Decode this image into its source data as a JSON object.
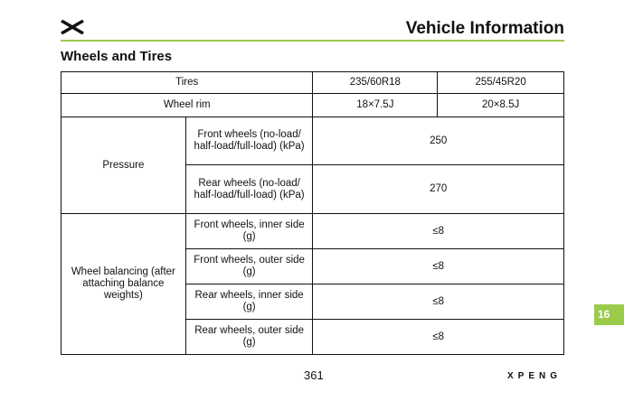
{
  "header": {
    "title": "Vehicle Information",
    "logo": "xpeng-x-logo"
  },
  "section": {
    "title": "Wheels and Tires"
  },
  "table": {
    "tires_label": "Tires",
    "tire_a": "235/60R18",
    "tire_b": "255/45R20",
    "rim_label": "Wheel rim",
    "rim_a": "18×7.5J",
    "rim_b": "20×8.5J",
    "pressure_label": "Pressure",
    "front_pressure_label": "Front wheels (no-load/ half-load/full-load) (kPa)",
    "front_pressure": "250",
    "rear_pressure_label": "Rear wheels (no-load/ half-load/full-load) (kPa)",
    "rear_pressure": "270",
    "balancing_label": "Wheel balancing (after attaching balance weights)",
    "balancing_rows": [
      {
        "label": "Front wheels, inner side (g)",
        "value": "≤8"
      },
      {
        "label": "Front wheels, outer side (g)",
        "value": "≤8"
      },
      {
        "label": "Rear wheels, inner side (g)",
        "value": "≤8"
      },
      {
        "label": "Rear wheels, outer side (g)",
        "value": "≤8"
      }
    ]
  },
  "chapter_tab": "16",
  "footer": {
    "page_number": "361",
    "brand": "XPENG"
  },
  "colors": {
    "accent": "#9bcb4b"
  }
}
